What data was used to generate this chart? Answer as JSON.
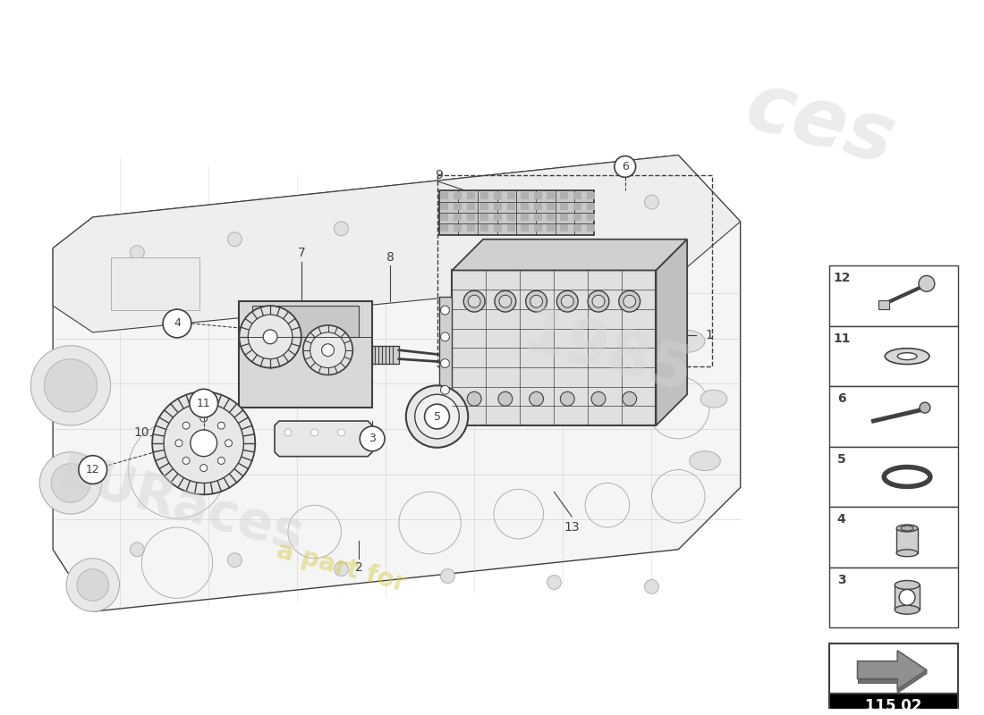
{
  "bg_color": "#ffffff",
  "line_color": "#404040",
  "gray1": "#d8d8d8",
  "gray2": "#c0c0c0",
  "gray3": "#a0a0a0",
  "gray4": "#e8e8e8",
  "light_line": "#b0b0b0",
  "diagram_code": "115 02",
  "part_numbers_side": [
    12,
    11,
    6,
    5,
    4,
    3
  ],
  "watermark_color": "#cccccc",
  "yellow_color": "#d4c840"
}
